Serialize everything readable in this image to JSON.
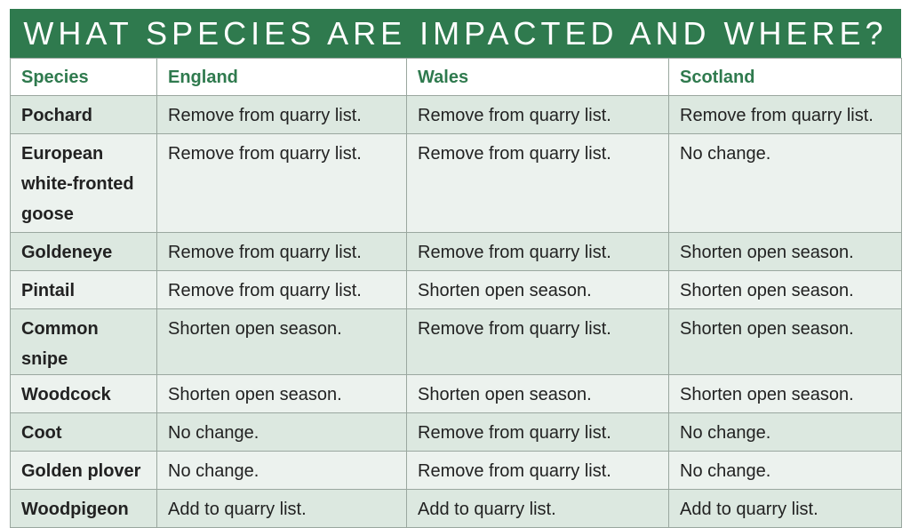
{
  "title": "WHAT SPECIES ARE IMPACTED AND WHERE?",
  "columns": [
    "Species",
    "England",
    "Wales",
    "Scotland"
  ],
  "rows": [
    {
      "species": "Pochard",
      "england": "Remove from quarry list.",
      "wales": "Remove from quarry list.",
      "scotland": "Remove from quarry list."
    },
    {
      "species": "European white-fronted goose",
      "england": "Remove from quarry list.",
      "wales": "Remove from quarry list.",
      "scotland": "No change."
    },
    {
      "species": "Goldeneye",
      "england": "Remove from quarry list.",
      "wales": "Remove from quarry list.",
      "scotland": "Shorten open season."
    },
    {
      "species": "Pintail",
      "england": "Remove from quarry list.",
      "wales": "Shorten open season.",
      "scotland": "Shorten open season."
    },
    {
      "species": "Common snipe",
      "england": "Shorten open season.",
      "wales": "Remove from quarry list.",
      "scotland": "Shorten open season."
    },
    {
      "species": "Woodcock",
      "england": "Shorten open season.",
      "wales": "Shorten open season.",
      "scotland": "Shorten open season."
    },
    {
      "species": "Coot",
      "england": "No change.",
      "wales": "Remove from quarry list.",
      "scotland": "No change."
    },
    {
      "species": "Golden plover",
      "england": "No change.",
      "wales": "Remove from quarry list.",
      "scotland": "No change."
    },
    {
      "species": "Woodpigeon",
      "england": "Add to quarry list.",
      "wales": "Add to quarry list.",
      "scotland": "Add to quarry list."
    }
  ]
}
